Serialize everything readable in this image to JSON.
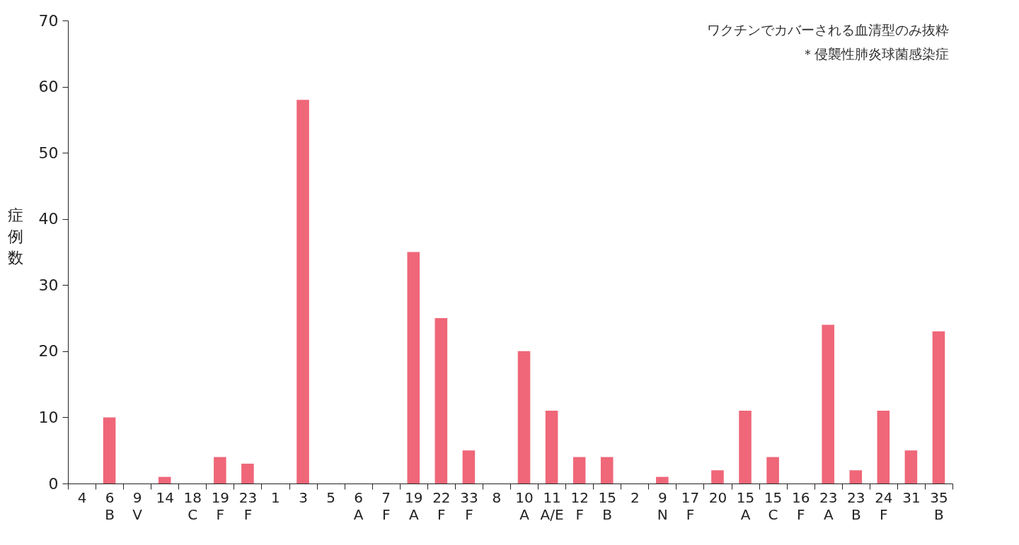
{
  "chart_data": {
    "type": "bar",
    "ylabel": "症例数",
    "annotations": [
      "ワクチンでカバーされる血清型のみ抜粋",
      "＊侵襲性肺炎球菌感染症"
    ],
    "categories": [
      "4",
      "6\nB",
      "9\nV",
      "14",
      "18\nC",
      "19\nF",
      "23\nF",
      "1",
      "3",
      "5",
      "6\nA",
      "7\nF",
      "19\nA",
      "22\nF",
      "33\nF",
      "8",
      "10\nA",
      "11\nA/E",
      "12\nF",
      "15\nB",
      "2",
      "9\nN",
      "17\nF",
      "20",
      "15\nA",
      "15\nC",
      "16\nF",
      "23\nA",
      "23\nB",
      "24\nF",
      "31",
      "35\nB"
    ],
    "values": [
      0,
      10,
      0,
      1,
      0,
      4,
      3,
      0,
      58,
      0,
      0,
      0,
      35,
      25,
      5,
      0,
      20,
      11,
      4,
      4,
      0,
      1,
      0,
      2,
      11,
      4,
      0,
      24,
      2,
      11,
      5,
      23
    ],
    "color": "#ef6779",
    "ylim": [
      0,
      70
    ],
    "yticks": [
      0,
      10,
      20,
      30,
      40,
      50,
      60,
      70
    ],
    "grid": false
  }
}
